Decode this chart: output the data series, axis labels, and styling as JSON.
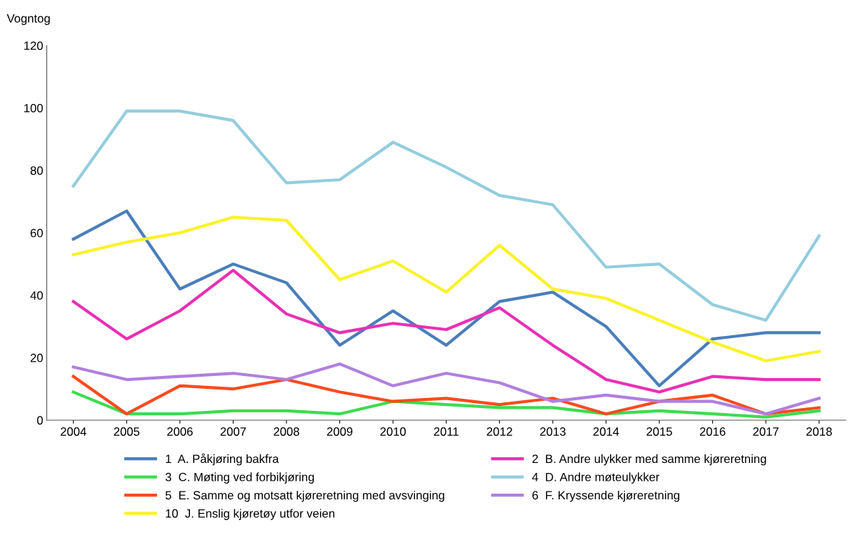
{
  "chart_data": {
    "type": "line",
    "ylabel": "Vogntog",
    "categories": [
      "2004",
      "2005",
      "2006",
      "2007",
      "2008",
      "2009",
      "2010",
      "2011",
      "2012",
      "2013",
      "2014",
      "2015",
      "2016",
      "2017",
      "2018"
    ],
    "ylim": [
      0,
      120
    ],
    "yticks": [
      0,
      20,
      40,
      60,
      80,
      100,
      120
    ],
    "grid": false,
    "legend": "bottom",
    "marker": "none",
    "line_style": "solid",
    "series": [
      {
        "name": "1  A. Påkjøring bakfra",
        "color": "#4a7ebb",
        "values": [
          58,
          67,
          42,
          50,
          44,
          24,
          35,
          24,
          38,
          41,
          30,
          11,
          26,
          28,
          28
        ]
      },
      {
        "name": "2  B. Andre ulykker med samme kjøreretning",
        "color": "#e930b5",
        "values": [
          38,
          26,
          35,
          48,
          34,
          28,
          31,
          29,
          36,
          24,
          13,
          9,
          14,
          13,
          13
        ]
      },
      {
        "name": "3  C. Møting ved forbikjøring",
        "color": "#3ddc4f",
        "values": [
          9,
          2,
          2,
          3,
          3,
          2,
          6,
          5,
          4,
          4,
          2,
          3,
          2,
          1,
          3
        ]
      },
      {
        "name": "4  D. Andre møteulykker",
        "color": "#93cddd",
        "values": [
          75,
          99,
          99,
          96,
          76,
          77,
          89,
          81,
          72,
          69,
          49,
          50,
          37,
          32,
          59
        ]
      },
      {
        "name": "5  E. Samme og motsatt kjøreretning med avsvinging",
        "color": "#fb4b1d",
        "values": [
          14,
          2,
          11,
          10,
          13,
          9,
          6,
          7,
          5,
          7,
          2,
          6,
          8,
          2,
          4
        ]
      },
      {
        "name": "6  F. Kryssende kjøreretning",
        "color": "#b07fdf",
        "values": [
          17,
          13,
          14,
          15,
          13,
          18,
          11,
          15,
          12,
          6,
          8,
          6,
          6,
          2,
          7
        ]
      },
      {
        "name": "10  J. Enslig kjøretøy utfor veien",
        "color": "#f9f22a",
        "values": [
          53,
          57,
          60,
          65,
          64,
          45,
          51,
          41,
          56,
          42,
          39,
          32,
          25,
          19,
          22
        ]
      }
    ]
  }
}
